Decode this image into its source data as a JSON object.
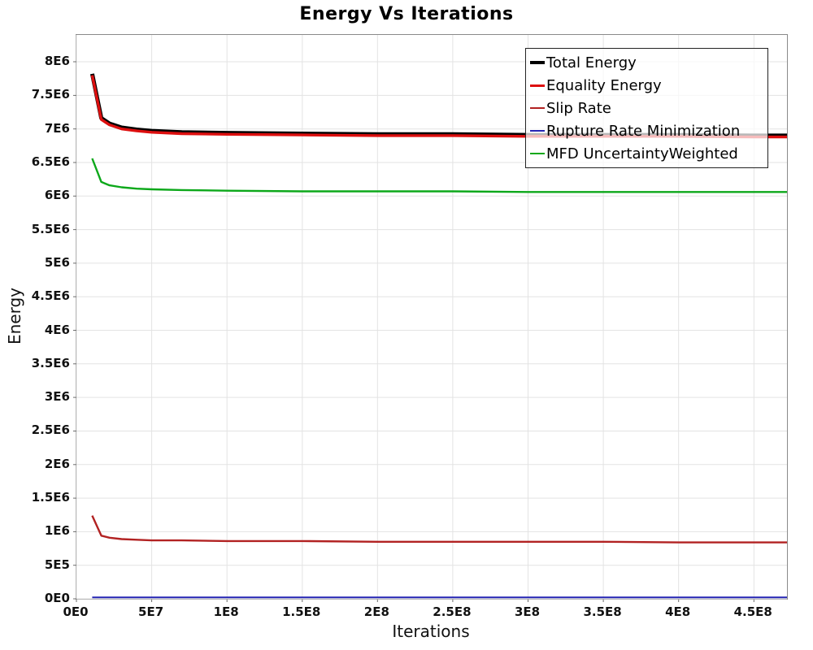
{
  "title": "Energy Vs Iterations",
  "chart_data": {
    "type": "line",
    "title": "Energy Vs Iterations",
    "xlabel": "Iterations",
    "ylabel": "Energy",
    "xlim": [
      0,
      472000000
    ],
    "ylim": [
      0,
      8400000
    ],
    "grid": true,
    "legend_position": "top-right",
    "plot_border_color": "#8a8a8a",
    "grid_color": "#e3e3e3",
    "xticks": {
      "values": [
        0,
        50000000,
        100000000,
        150000000,
        200000000,
        250000000,
        300000000,
        350000000,
        400000000,
        450000000
      ],
      "labels": [
        "0E0",
        "5E7",
        "1E8",
        "1.5E8",
        "2E8",
        "2.5E8",
        "3E8",
        "3.5E8",
        "4E8",
        "4.5E8"
      ]
    },
    "yticks": {
      "values": [
        0,
        500000,
        1000000,
        1500000,
        2000000,
        2500000,
        3000000,
        3500000,
        4000000,
        4500000,
        5000000,
        5500000,
        6000000,
        6500000,
        7000000,
        7500000,
        8000000
      ],
      "labels": [
        "0E0",
        "5E5",
        "1E6",
        "1.5E6",
        "2E6",
        "2.5E6",
        "3E6",
        "3.5E6",
        "4E6",
        "4.5E6",
        "5E6",
        "5.5E6",
        "6E6",
        "6.5E6",
        "7E6",
        "7.5E6",
        "8E6"
      ]
    },
    "x": [
      10500000,
      16500000,
      22000000,
      30000000,
      40000000,
      50000000,
      70000000,
      100000000,
      150000000,
      200000000,
      250000000,
      300000000,
      350000000,
      400000000,
      450000000,
      472000000
    ],
    "series": [
      {
        "name": "Total Energy",
        "color": "#000000",
        "width": 5,
        "values": [
          7820000,
          7160000,
          7080000,
          7020000,
          6990000,
          6970000,
          6950000,
          6940000,
          6930000,
          6920000,
          6920000,
          6910000,
          6910000,
          6910000,
          6900000,
          6900000
        ]
      },
      {
        "name": "Equality Energy",
        "color": "#dd0f0f",
        "width": 3.4,
        "values": [
          7800000,
          7140000,
          7060000,
          7000000,
          6970000,
          6950000,
          6930000,
          6920000,
          6910000,
          6900000,
          6900000,
          6890000,
          6890000,
          6890000,
          6880000,
          6880000
        ]
      },
      {
        "name": "Slip Rate",
        "color": "#b22222",
        "width": 2.4,
        "values": [
          1240000,
          940000,
          910000,
          890000,
          880000,
          870000,
          870000,
          860000,
          860000,
          850000,
          850000,
          850000,
          850000,
          840000,
          840000,
          840000
        ]
      },
      {
        "name": "Rupture Rate Minimization",
        "color": "#2525b4",
        "width": 2,
        "values": [
          20000,
          20000,
          20000,
          20000,
          20000,
          20000,
          20000,
          20000,
          20000,
          20000,
          20000,
          20000,
          20000,
          20000,
          20000,
          20000
        ]
      },
      {
        "name": "MFD UncertaintyWeighted",
        "color": "#0ca81a",
        "width": 2.4,
        "values": [
          6560000,
          6210000,
          6160000,
          6130000,
          6110000,
          6100000,
          6090000,
          6080000,
          6070000,
          6070000,
          6070000,
          6060000,
          6060000,
          6060000,
          6060000,
          6060000
        ]
      }
    ]
  }
}
